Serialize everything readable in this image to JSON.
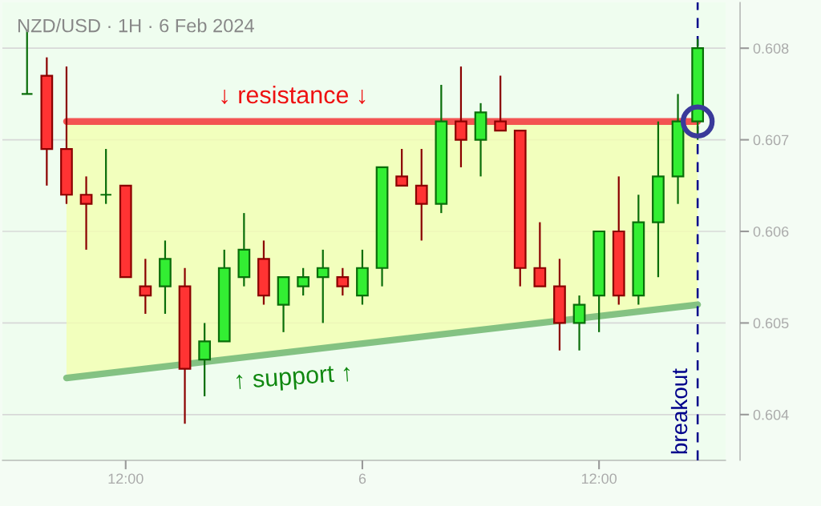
{
  "chart_data": {
    "type": "candlestick",
    "title": "NZD/USD · 1H · 6 Feb 2024",
    "x": [
      "2024-02-05T07:00",
      "2024-02-05T08:00",
      "2024-02-05T09:00",
      "2024-02-05T10:00",
      "2024-02-05T11:00",
      "2024-02-05T12:00",
      "2024-02-05T13:00",
      "2024-02-05T14:00",
      "2024-02-05T15:00",
      "2024-02-05T16:00",
      "2024-02-05T17:00",
      "2024-02-05T18:00",
      "2024-02-05T19:00",
      "2024-02-05T20:00",
      "2024-02-05T21:00",
      "2024-02-05T22:00",
      "2024-02-05T23:00",
      "2024-02-06T00:00",
      "2024-02-06T01:00",
      "2024-02-06T02:00",
      "2024-02-06T03:00",
      "2024-02-06T04:00",
      "2024-02-06T05:00",
      "2024-02-06T06:00",
      "2024-02-06T07:00",
      "2024-02-06T08:00",
      "2024-02-06T09:00",
      "2024-02-06T10:00",
      "2024-02-06T11:00",
      "2024-02-06T12:00",
      "2024-02-06T13:00",
      "2024-02-06T14:00",
      "2024-02-06T15:00",
      "2024-02-06T16:00",
      "2024-02-06T17:00"
    ],
    "ohlc": [
      [
        0.6075,
        0.6082,
        0.6075,
        0.6075
      ],
      [
        0.6077,
        0.6079,
        0.6065,
        0.6069
      ],
      [
        0.6069,
        0.6078,
        0.6063,
        0.6064
      ],
      [
        0.6064,
        0.6066,
        0.6058,
        0.6063
      ],
      [
        0.6064,
        0.6069,
        0.6063,
        0.6064
      ],
      [
        0.6065,
        0.6065,
        0.6055,
        0.6055
      ],
      [
        0.6054,
        0.6057,
        0.6051,
        0.6053
      ],
      [
        0.6054,
        0.6059,
        0.6051,
        0.6057
      ],
      [
        0.6054,
        0.6056,
        0.6039,
        0.6045
      ],
      [
        0.6046,
        0.605,
        0.6042,
        0.6048
      ],
      [
        0.6048,
        0.6058,
        0.6048,
        0.6056
      ],
      [
        0.6055,
        0.6062,
        0.6054,
        0.6058
      ],
      [
        0.6057,
        0.6059,
        0.6052,
        0.6053
      ],
      [
        0.6052,
        0.6055,
        0.6049,
        0.6055
      ],
      [
        0.6054,
        0.6056,
        0.6053,
        0.6055
      ],
      [
        0.6055,
        0.6058,
        0.605,
        0.6056
      ],
      [
        0.6055,
        0.6056,
        0.6053,
        0.6054
      ],
      [
        0.6053,
        0.6058,
        0.6052,
        0.6056
      ],
      [
        0.6056,
        0.6067,
        0.6054,
        0.6067
      ],
      [
        0.6066,
        0.6069,
        0.6065,
        0.6065
      ],
      [
        0.6065,
        0.6069,
        0.6059,
        0.6063
      ],
      [
        0.6063,
        0.6076,
        0.6062,
        0.6072
      ],
      [
        0.6072,
        0.6078,
        0.6067,
        0.607
      ],
      [
        0.607,
        0.6074,
        0.6066,
        0.6073
      ],
      [
        0.6072,
        0.6077,
        0.6071,
        0.6071
      ],
      [
        0.6071,
        0.6071,
        0.6054,
        0.6056
      ],
      [
        0.6056,
        0.6061,
        0.6054,
        0.6054
      ],
      [
        0.6054,
        0.6057,
        0.6047,
        0.605
      ],
      [
        0.605,
        0.6053,
        0.6047,
        0.6052
      ],
      [
        0.6053,
        0.606,
        0.6049,
        0.606
      ],
      [
        0.606,
        0.6066,
        0.6052,
        0.6053
      ],
      [
        0.6053,
        0.6064,
        0.6052,
        0.6061
      ],
      [
        0.6061,
        0.6072,
        0.6055,
        0.6066
      ],
      [
        0.6066,
        0.6075,
        0.6063,
        0.6072
      ],
      [
        0.6072,
        0.6081,
        0.607,
        0.608
      ]
    ],
    "series": [
      {
        "type": "line",
        "x": [
          "2024-02-05T09:00",
          "2024-02-06T17:00"
        ],
        "values": [
          0.6072,
          0.6072
        ],
        "color": "#f24a4a"
      },
      {
        "type": "line",
        "x": [
          "2024-02-05T09:00",
          "2024-02-06T17:00"
        ],
        "values": [
          0.6044,
          0.6052
        ],
        "color": "#7dbf7d"
      }
    ],
    "ref_lines": [
      {
        "axis": "x",
        "value": "2024-02-06T17:00",
        "label": "breakout",
        "color": "#00008b",
        "line_style": "dashed"
      }
    ],
    "annotations": [
      {
        "text": "↓ resistance ↓",
        "x": "2024-02-05T20:30",
        "y": 0.6072
      },
      {
        "text": "↑ support ↑",
        "x": "2024-02-05T20:30",
        "y": 0.6047
      }
    ],
    "xlim": [
      "2024-02-05T05:45",
      "2024-02-06T18:25"
    ],
    "xticks": [
      {
        "value": "2024-02-05T12:00",
        "label": "12:00"
      },
      {
        "value": "2024-02-06T00:00",
        "label": "6"
      },
      {
        "value": "2024-02-06T12:00",
        "label": "12:00"
      }
    ],
    "ylim": [
      0.6035,
      0.6085
    ],
    "yticks": [
      0.604,
      0.605,
      0.606,
      0.607,
      0.608
    ],
    "grid": "y",
    "legend": false
  }
}
